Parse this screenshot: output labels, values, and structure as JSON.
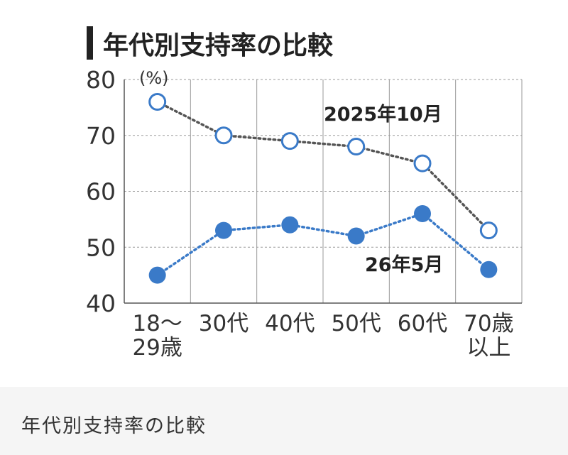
{
  "caption": "年代別支持率の比較",
  "chart_data": {
    "type": "line",
    "title": "年代別支持率の比較",
    "unit_label": "(%)",
    "categories": [
      [
        "18～",
        "29歳"
      ],
      [
        "30代"
      ],
      [
        "40代"
      ],
      [
        "50代"
      ],
      [
        "60代"
      ],
      [
        "70歳",
        "以上"
      ]
    ],
    "series": [
      {
        "name": "2025年10月",
        "values": [
          76,
          70,
          69,
          68,
          65,
          53
        ],
        "color": "#3a7ac8",
        "marker": "open-circle",
        "line_color": "#555555"
      },
      {
        "name": "26年5月",
        "values": [
          45,
          53,
          54,
          52,
          56,
          46
        ],
        "color": "#3a7ac8",
        "marker": "filled-circle",
        "line_color": "#3a7ac8"
      }
    ],
    "ylim": [
      40,
      80
    ],
    "yticks": [
      40,
      50,
      60,
      70,
      80
    ],
    "grid": true
  }
}
